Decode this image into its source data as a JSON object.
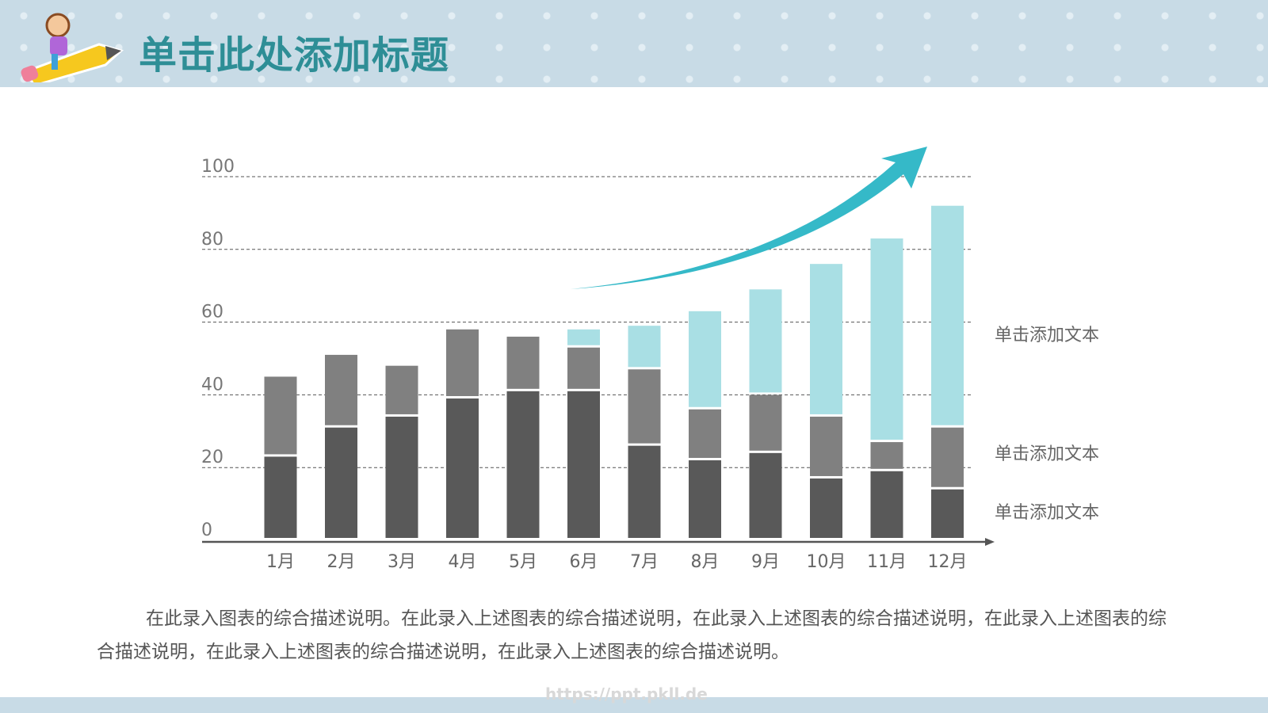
{
  "header": {
    "title": "单击此处添加标题"
  },
  "description": "在此录入图表的综合描述说明。在此录入上述图表的综合描述说明，在此录入上述图表的综合描述说明，在此录入上述图表的综合描述说明，在此录入上述图表的综合描述说明，在此录入上述图表的综合描述说明。",
  "watermark": "https://ppt.pkll.de",
  "chart_data": {
    "type": "bar",
    "stacked": true,
    "categories": [
      "1月",
      "2月",
      "3月",
      "4月",
      "5月",
      "6月",
      "7月",
      "8月",
      "9月",
      "10月",
      "11月",
      "12月"
    ],
    "series": [
      {
        "name": "单击添加文本",
        "color": "#595959",
        "values": [
          23,
          31,
          34,
          39,
          41,
          41,
          26,
          22,
          24,
          17,
          19,
          14
        ]
      },
      {
        "name": "单击添加文本",
        "color": "#808080",
        "values": [
          22,
          20,
          14,
          19,
          15,
          12,
          21,
          14,
          16,
          17,
          8,
          17
        ]
      },
      {
        "name": "单击添加文本",
        "color": "#a9dfe4",
        "values": [
          0,
          0,
          0,
          0,
          0,
          5,
          12,
          27,
          29,
          42,
          56,
          61
        ]
      }
    ],
    "yticks": [
      0,
      20,
      40,
      60,
      80,
      100
    ],
    "ylim": [
      0,
      100
    ],
    "grid": true,
    "legend": "right",
    "trend_arrow_color": "#35b9c8"
  }
}
